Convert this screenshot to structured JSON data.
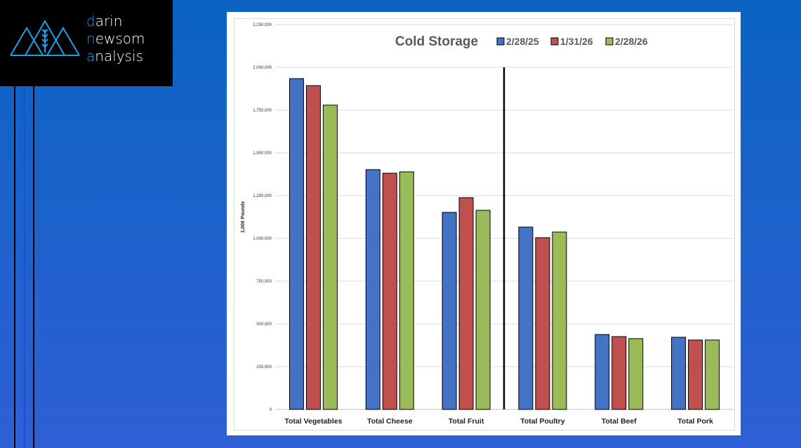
{
  "logo": {
    "line1_initial": "d",
    "line1_rest": "arin",
    "line2_initial": "n",
    "line2_mid": "ew",
    "line2_rest": "som",
    "line3_initial": "a",
    "line3_rest": "nalysis"
  },
  "chart_data": {
    "type": "bar",
    "title": "Cold Storage",
    "xlabel": "",
    "ylabel": "1,000 Pounds",
    "ylim": [
      0,
      2250000
    ],
    "yticks": [
      0,
      250000,
      500000,
      750000,
      1000000,
      1250000,
      1500000,
      1750000,
      2000000,
      2250000
    ],
    "ytick_labels": [
      "0",
      "250,000",
      "500,000",
      "750,000",
      "1,000,000",
      "1,250,000",
      "1,500,000",
      "1,750,000",
      "2,000,000",
      "2,250,000"
    ],
    "grid": true,
    "legend_position": "top-right",
    "categories": [
      "Total Vegetables",
      "Total Cheese",
      "Total Fruit",
      "Total Poultry",
      "Total Beef",
      "Total Pork"
    ],
    "series": [
      {
        "name": "2/28/25",
        "color": "#4472c4",
        "values": [
          1934000,
          1402000,
          1152000,
          1066000,
          438000,
          422000
        ]
      },
      {
        "name": "1/31/26",
        "color": "#c0504d",
        "values": [
          1893000,
          1381000,
          1238000,
          1004000,
          426000,
          406000
        ]
      },
      {
        "name": "2/28/26",
        "color": "#9bbb59",
        "values": [
          1779000,
          1389000,
          1164000,
          1037000,
          414000,
          406000
        ]
      }
    ],
    "annotations": [
      {
        "type": "vertical-divider",
        "between": [
          "Total Fruit",
          "Total Poultry"
        ],
        "from_y": 0,
        "to_y": 2000000
      }
    ]
  }
}
